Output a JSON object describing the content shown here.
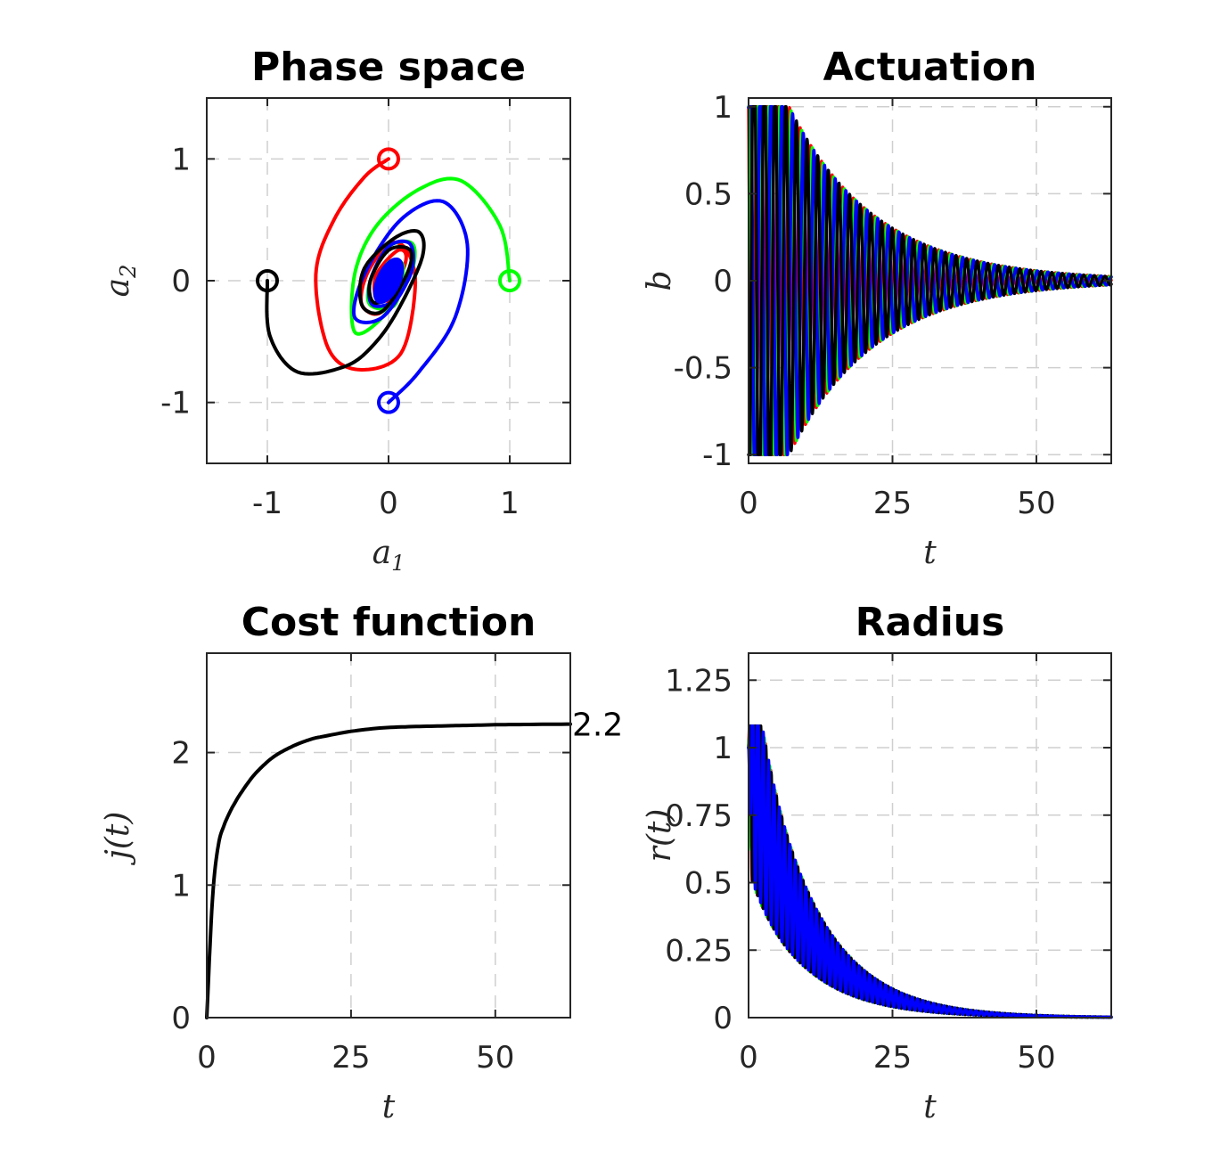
{
  "chart_data": [
    {
      "type": "line",
      "title": "Phase space",
      "xlabel": "a_1",
      "ylabel": "a_2",
      "xlim": [
        -1.5,
        1.5
      ],
      "ylim": [
        -1.5,
        1.5
      ],
      "xticks": [
        "-1",
        "0",
        "1"
      ],
      "yticks": [
        "-1",
        "0",
        "1"
      ],
      "grid": true,
      "series": [
        {
          "color": "#ff0000",
          "start": [
            0,
            1
          ],
          "marker": "circle",
          "points": [
            [
              0,
              1
            ],
            [
              -0.2,
              0.85
            ],
            [
              -0.45,
              0.5
            ],
            [
              -0.6,
              0.05
            ],
            [
              -0.5,
              -0.55
            ],
            [
              -0.25,
              -0.73
            ],
            [
              0.1,
              -0.6
            ],
            [
              0.22,
              -0.05
            ],
            [
              0.15,
              0.25
            ],
            [
              0.0,
              0.3
            ],
            [
              -0.18,
              0.05
            ],
            [
              -0.22,
              -0.2
            ],
            [
              -0.05,
              -0.25
            ],
            [
              0.14,
              0.15
            ],
            [
              0.08,
              0.25
            ],
            [
              -0.1,
              0.05
            ],
            [
              -0.1,
              -0.15
            ],
            [
              0.0,
              -0.1
            ],
            [
              0.05,
              0.05
            ],
            [
              0,
              0
            ]
          ]
        },
        {
          "color": "#00ff00",
          "start": [
            1,
            0
          ],
          "marker": "circle",
          "points": [
            [
              1,
              0
            ],
            [
              0.92,
              0.45
            ],
            [
              0.6,
              0.82
            ],
            [
              0.25,
              0.75
            ],
            [
              -0.1,
              0.45
            ],
            [
              -0.28,
              0.05
            ],
            [
              -0.28,
              -0.42
            ],
            [
              -0.05,
              -0.3
            ],
            [
              0.18,
              0.05
            ],
            [
              0.2,
              0.3
            ],
            [
              0.0,
              0.28
            ],
            [
              -0.15,
              0.0
            ],
            [
              -0.15,
              -0.2
            ],
            [
              0.05,
              -0.2
            ],
            [
              0.12,
              0.12
            ],
            [
              0.0,
              0.15
            ],
            [
              -0.08,
              -0.05
            ],
            [
              0.0,
              -0.1
            ],
            [
              0.05,
              0.05
            ],
            [
              0,
              0
            ]
          ]
        },
        {
          "color": "#0000ff",
          "start": [
            0,
            -1
          ],
          "marker": "circle",
          "points": [
            [
              0,
              -1
            ],
            [
              0.25,
              -0.75
            ],
            [
              0.55,
              -0.3
            ],
            [
              0.65,
              0.3
            ],
            [
              0.45,
              0.65
            ],
            [
              0.1,
              0.5
            ],
            [
              -0.2,
              0.05
            ],
            [
              -0.28,
              -0.3
            ],
            [
              -0.05,
              -0.3
            ],
            [
              0.18,
              0.05
            ],
            [
              0.18,
              0.3
            ],
            [
              0.0,
              0.28
            ],
            [
              -0.15,
              0.0
            ],
            [
              -0.13,
              -0.2
            ],
            [
              0.06,
              -0.15
            ],
            [
              0.1,
              0.12
            ],
            [
              -0.02,
              0.12
            ],
            [
              -0.06,
              -0.05
            ],
            [
              0.02,
              -0.05
            ],
            [
              0,
              0
            ]
          ]
        },
        {
          "color": "#000000",
          "start": [
            -1,
            0
          ],
          "marker": "circle",
          "points": [
            [
              -1,
              0
            ],
            [
              -0.98,
              -0.45
            ],
            [
              -0.75,
              -0.75
            ],
            [
              -0.35,
              -0.7
            ],
            [
              -0.1,
              -0.5
            ],
            [
              0.1,
              -0.2
            ],
            [
              0.28,
              0.2
            ],
            [
              0.25,
              0.4
            ],
            [
              0.05,
              0.35
            ],
            [
              -0.2,
              0.1
            ],
            [
              -0.22,
              -0.2
            ],
            [
              -0.05,
              -0.25
            ],
            [
              0.15,
              0.05
            ],
            [
              0.18,
              0.25
            ],
            [
              0.0,
              0.25
            ],
            [
              -0.15,
              0.0
            ],
            [
              -0.12,
              -0.18
            ],
            [
              0.05,
              -0.1
            ],
            [
              0.1,
              0.1
            ],
            [
              0,
              0
            ]
          ]
        }
      ]
    },
    {
      "type": "line",
      "title": "Actuation",
      "xlabel": "t",
      "ylabel": "b",
      "xlim": [
        0,
        63
      ],
      "ylim": [
        -1.05,
        1.05
      ],
      "xticks": [
        "0",
        "25",
        "50"
      ],
      "yticks": [
        "-1",
        "-0.5",
        "0",
        "0.5",
        "1"
      ],
      "grid": true,
      "model": "b(t) = clip(1.6*cos(w*t + phase) * exp(-t/tau), -1, 1), w = 3.4, tau = 15",
      "series": [
        {
          "color": "#ff0000",
          "phase": 0.9
        },
        {
          "color": "#00ff00",
          "phase": 0.0
        },
        {
          "color": "#0000ff",
          "phase": -0.9
        },
        {
          "color": "#000000",
          "phase": 3.14
        }
      ]
    },
    {
      "type": "line",
      "title": "Cost function",
      "xlabel": "t",
      "ylabel": "j(t)",
      "xlim": [
        0,
        63
      ],
      "ylim": [
        0,
        2.75
      ],
      "xticks": [
        "0",
        "25",
        "50"
      ],
      "yticks": [
        "0",
        "1",
        "2"
      ],
      "grid": true,
      "annotation": "2.2",
      "series": [
        {
          "color": "#000000",
          "x": [
            0,
            1,
            2,
            3,
            4,
            5,
            6,
            8,
            10,
            12,
            15,
            18,
            20,
            25,
            30,
            35,
            40,
            45,
            50,
            55,
            63
          ],
          "values": [
            0,
            0.9,
            1.3,
            1.45,
            1.55,
            1.63,
            1.7,
            1.82,
            1.91,
            1.98,
            2.05,
            2.1,
            2.12,
            2.16,
            2.185,
            2.195,
            2.2,
            2.205,
            2.21,
            2.212,
            2.215
          ]
        }
      ]
    },
    {
      "type": "line",
      "title": "Radius",
      "xlabel": "t",
      "ylabel": "r(t)",
      "xlim": [
        0,
        63
      ],
      "ylim": [
        0,
        1.35
      ],
      "xticks": [
        "0",
        "25",
        "50"
      ],
      "yticks": [
        "0",
        "0.25",
        "0.5",
        "0.75",
        "1",
        "1.25"
      ],
      "grid": true,
      "model": "r(t) = exp(-t/tau) * (1 + 0.45*sin(2*w*t + phase)) * (0.9 + 0.1*exp(-t/3)), w = 3.4, tau = 10",
      "series": [
        {
          "color": "#ff0000",
          "phase": 0.6
        },
        {
          "color": "#00ff00",
          "phase": 1.8
        },
        {
          "color": "#000000",
          "phase": 0.0
        },
        {
          "color": "#0000ff",
          "phase": 3.0
        }
      ]
    }
  ]
}
